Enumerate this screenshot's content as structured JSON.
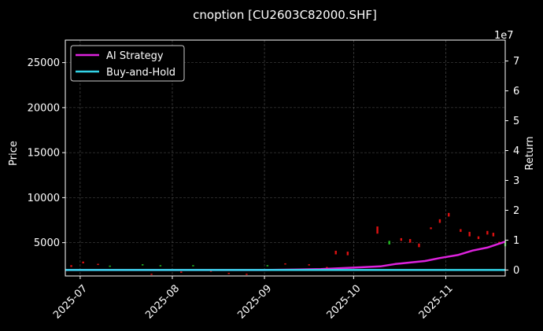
{
  "chart_data": {
    "type": "line",
    "title": "cnoption [CU2603C82000.SHF]",
    "xlabel": "",
    "ylabel_left": "Price",
    "ylabel_right": "Return",
    "right_axis_multiplier": "1e7",
    "x_range": [
      "2025-06-26",
      "2025-11-21"
    ],
    "ylim_left": [
      1300,
      27500
    ],
    "ylim_right": [
      -0.2,
      7.7
    ],
    "x_ticks": [
      "2025-07",
      "2025-08",
      "2025-09",
      "2025-10",
      "2025-11"
    ],
    "y_ticks_left": [
      5000,
      10000,
      15000,
      20000,
      25000
    ],
    "y_ticks_right": [
      0,
      1,
      2,
      3,
      4,
      5,
      6,
      7
    ],
    "grid": true,
    "legend_position": "top-left",
    "series": [
      {
        "name": "AI Strategy",
        "axis": "right",
        "color": "#dd22dd",
        "points": [
          [
            "2025-06-26",
            0
          ],
          [
            "2025-08-01",
            0
          ],
          [
            "2025-09-01",
            0
          ],
          [
            "2025-09-20",
            0.03
          ],
          [
            "2025-10-01",
            0.08
          ],
          [
            "2025-10-10",
            0.12
          ],
          [
            "2025-10-15",
            0.2
          ],
          [
            "2025-10-20",
            0.25
          ],
          [
            "2025-10-25",
            0.3
          ],
          [
            "2025-10-30",
            0.4
          ],
          [
            "2025-11-05",
            0.5
          ],
          [
            "2025-11-10",
            0.65
          ],
          [
            "2025-11-15",
            0.75
          ],
          [
            "2025-11-21",
            0.95
          ]
        ]
      },
      {
        "name": "Buy-and-Hold",
        "axis": "right",
        "color": "#33d4e8",
        "points": [
          [
            "2025-06-26",
            0
          ],
          [
            "2025-11-21",
            0
          ]
        ]
      }
    ],
    "price_marks": [
      {
        "date": "2025-06-28",
        "low": 2300,
        "high": 2500,
        "dir": "down"
      },
      {
        "date": "2025-07-02",
        "low": 2700,
        "high": 2900,
        "dir": "down"
      },
      {
        "date": "2025-07-07",
        "low": 2550,
        "high": 2650,
        "dir": "down"
      },
      {
        "date": "2025-07-11",
        "low": 2350,
        "high": 2450,
        "dir": "up"
      },
      {
        "date": "2025-07-16",
        "low": 1900,
        "high": 2000,
        "dir": "down"
      },
      {
        "date": "2025-07-22",
        "low": 2500,
        "high": 2600,
        "dir": "up"
      },
      {
        "date": "2025-07-25",
        "low": 1450,
        "high": 1550,
        "dir": "down"
      },
      {
        "date": "2025-07-28",
        "low": 2400,
        "high": 2500,
        "dir": "up"
      },
      {
        "date": "2025-08-04",
        "low": 1650,
        "high": 1800,
        "dir": "down"
      },
      {
        "date": "2025-08-08",
        "low": 2400,
        "high": 2500,
        "dir": "up"
      },
      {
        "date": "2025-08-14",
        "low": 1800,
        "high": 1900,
        "dir": "down"
      },
      {
        "date": "2025-08-20",
        "low": 1550,
        "high": 1650,
        "dir": "down"
      },
      {
        "date": "2025-08-26",
        "low": 1450,
        "high": 1550,
        "dir": "down"
      },
      {
        "date": "2025-09-02",
        "low": 2400,
        "high": 2500,
        "dir": "up"
      },
      {
        "date": "2025-09-08",
        "low": 2600,
        "high": 2700,
        "dir": "down"
      },
      {
        "date": "2025-09-16",
        "low": 2500,
        "high": 2600,
        "dir": "down"
      },
      {
        "date": "2025-09-22",
        "low": 2100,
        "high": 2300,
        "dir": "down"
      },
      {
        "date": "2025-09-25",
        "low": 3700,
        "high": 4100,
        "dir": "down"
      },
      {
        "date": "2025-09-29",
        "low": 3600,
        "high": 4000,
        "dir": "down"
      },
      {
        "date": "2025-10-09",
        "low": 6000,
        "high": 6800,
        "dir": "down"
      },
      {
        "date": "2025-10-13",
        "low": 4800,
        "high": 5200,
        "dir": "up"
      },
      {
        "date": "2025-10-17",
        "low": 5200,
        "high": 5500,
        "dir": "down"
      },
      {
        "date": "2025-10-20",
        "low": 5000,
        "high": 5400,
        "dir": "down"
      },
      {
        "date": "2025-10-23",
        "low": 4500,
        "high": 4900,
        "dir": "down"
      },
      {
        "date": "2025-10-27",
        "low": 6500,
        "high": 6700,
        "dir": "down"
      },
      {
        "date": "2025-10-30",
        "low": 7200,
        "high": 7600,
        "dir": "down"
      },
      {
        "date": "2025-11-02",
        "low": 7900,
        "high": 8300,
        "dir": "down"
      },
      {
        "date": "2025-11-06",
        "low": 6200,
        "high": 6500,
        "dir": "down"
      },
      {
        "date": "2025-11-09",
        "low": 5700,
        "high": 6200,
        "dir": "down"
      },
      {
        "date": "2025-11-12",
        "low": 5400,
        "high": 5700,
        "dir": "down"
      },
      {
        "date": "2025-11-15",
        "low": 5900,
        "high": 6300,
        "dir": "down"
      },
      {
        "date": "2025-11-17",
        "low": 5700,
        "high": 6100,
        "dir": "down"
      },
      {
        "date": "2025-11-19",
        "low": 4800,
        "high": 5100,
        "dir": "down"
      },
      {
        "date": "2025-11-21",
        "low": 4600,
        "high": 5200,
        "dir": "up"
      }
    ],
    "colors": {
      "background": "#000000",
      "grid": "#555555",
      "up": "#22bb22",
      "down": "#dd1111",
      "legend_border": "#cccccc"
    }
  }
}
